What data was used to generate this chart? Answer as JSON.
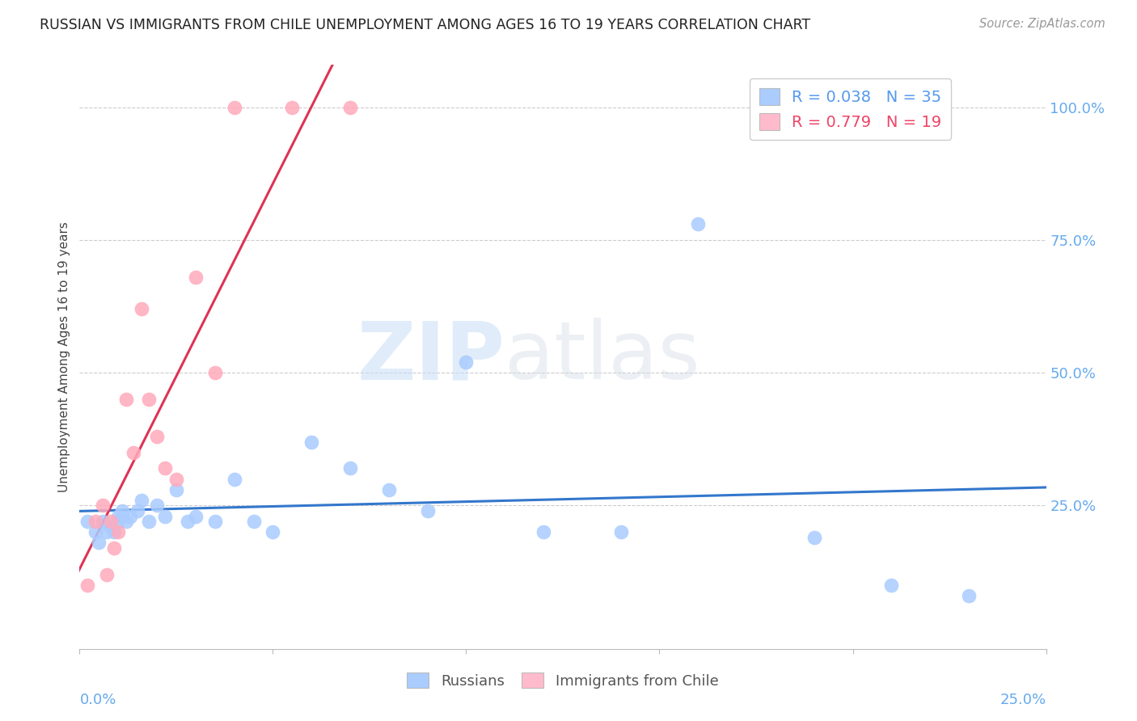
{
  "title": "RUSSIAN VS IMMIGRANTS FROM CHILE UNEMPLOYMENT AMONG AGES 16 TO 19 YEARS CORRELATION CHART",
  "source": "Source: ZipAtlas.com",
  "ylabel": "Unemployment Among Ages 16 to 19 years",
  "xlim": [
    0.0,
    0.25
  ],
  "ylim": [
    -0.02,
    1.08
  ],
  "yticks": [
    0.0,
    0.25,
    0.5,
    0.75,
    1.0
  ],
  "ytick_labels": [
    "",
    "25.0%",
    "50.0%",
    "75.0%",
    "100.0%"
  ],
  "russian_color": "#aaccff",
  "chile_color": "#ffaabb",
  "trendline_russian_color": "#3377cc",
  "trendline_chile_color": "#dd3355",
  "legend_box_color_russian": "#aaccff",
  "legend_box_color_chile": "#ffbbcc",
  "r_russian": 0.038,
  "n_russian": 35,
  "r_chile": 0.779,
  "n_chile": 19,
  "russians_x": [
    0.002,
    0.004,
    0.005,
    0.006,
    0.007,
    0.008,
    0.009,
    0.01,
    0.01,
    0.011,
    0.012,
    0.013,
    0.015,
    0.016,
    0.018,
    0.02,
    0.022,
    0.025,
    0.028,
    0.03,
    0.035,
    0.04,
    0.045,
    0.05,
    0.06,
    0.07,
    0.08,
    0.09,
    0.1,
    0.12,
    0.14,
    0.16,
    0.19,
    0.21,
    0.23
  ],
  "russians_y": [
    0.22,
    0.2,
    0.18,
    0.22,
    0.2,
    0.21,
    0.2,
    0.23,
    0.22,
    0.24,
    0.22,
    0.23,
    0.24,
    0.26,
    0.22,
    0.25,
    0.23,
    0.28,
    0.22,
    0.23,
    0.22,
    0.3,
    0.22,
    0.2,
    0.37,
    0.32,
    0.28,
    0.24,
    0.52,
    0.2,
    0.2,
    0.78,
    0.19,
    0.1,
    0.08
  ],
  "chile_x": [
    0.002,
    0.004,
    0.006,
    0.007,
    0.008,
    0.009,
    0.01,
    0.012,
    0.014,
    0.016,
    0.018,
    0.02,
    0.022,
    0.025,
    0.03,
    0.035,
    0.04,
    0.055,
    0.07
  ],
  "chile_y": [
    0.1,
    0.22,
    0.25,
    0.12,
    0.22,
    0.17,
    0.2,
    0.45,
    0.35,
    0.62,
    0.45,
    0.38,
    0.32,
    0.3,
    0.68,
    0.5,
    1.0,
    1.0,
    1.0
  ],
  "trendline_russia_x0": 0.0,
  "trendline_russia_x1": 0.25,
  "trendline_chile_x0": -0.005,
  "trendline_chile_x1": 0.085
}
